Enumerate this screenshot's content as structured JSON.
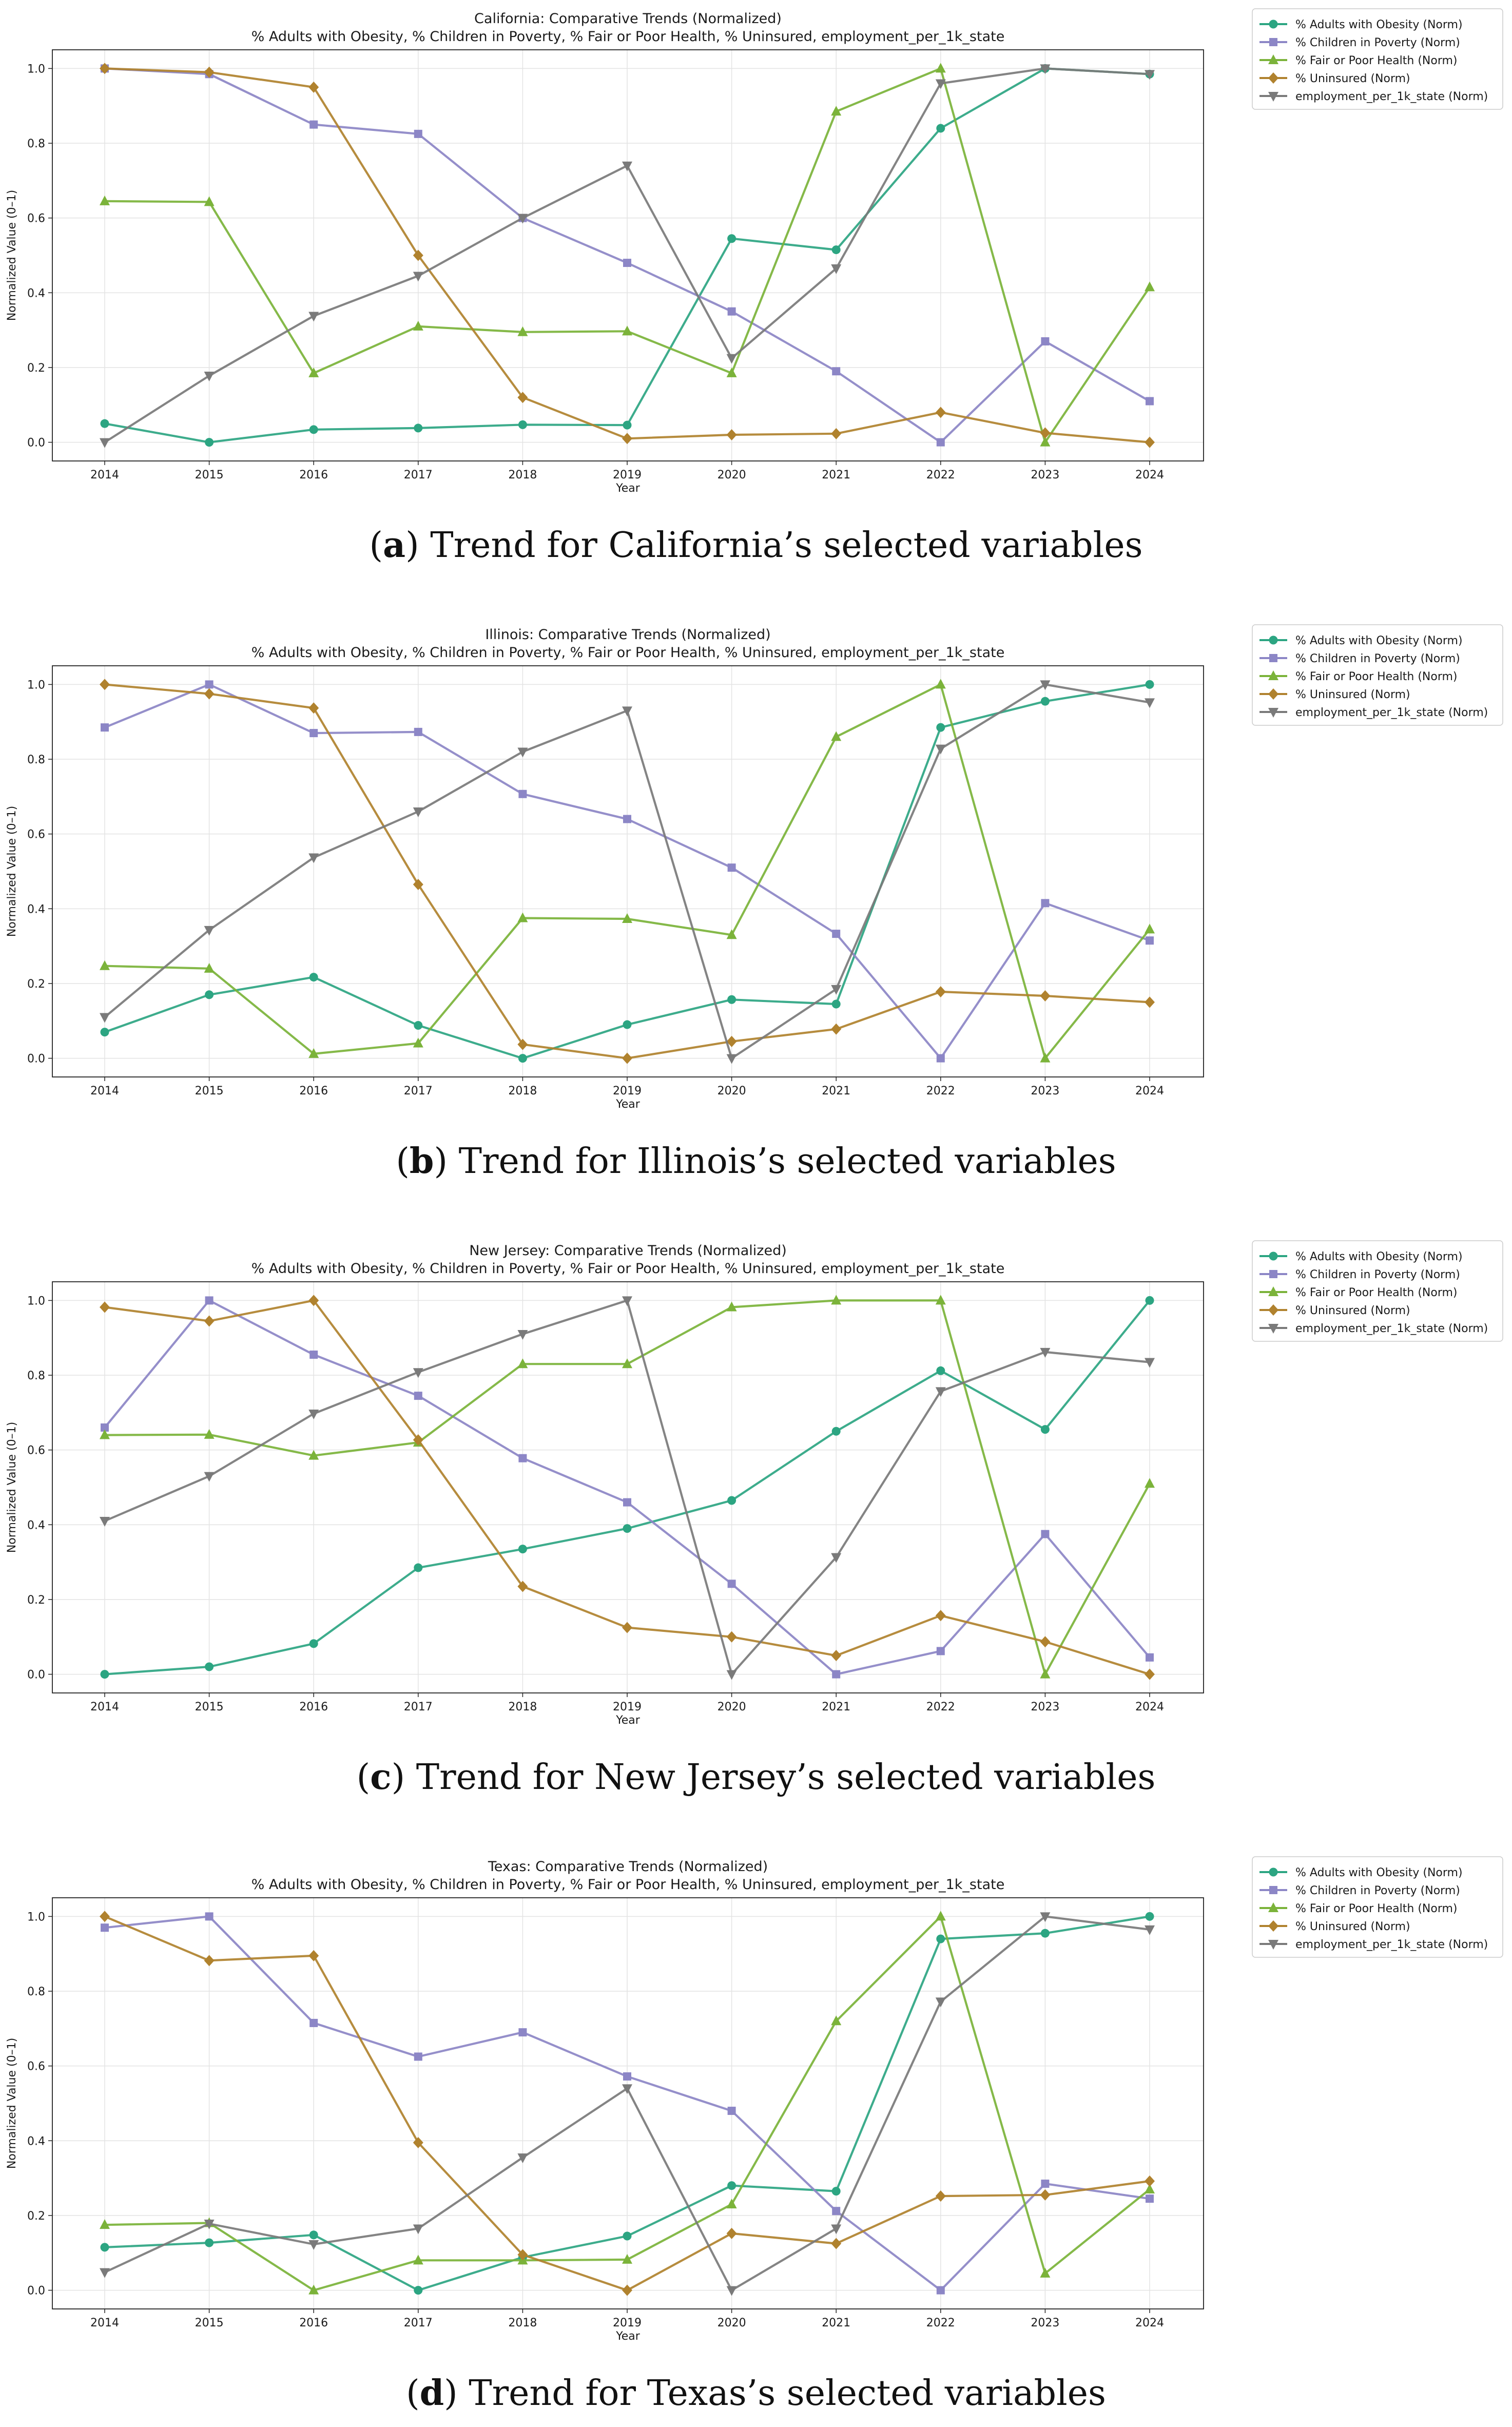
{
  "figure": {
    "common_subtitle": "% Adults with Obesity, % Children in Poverty, % Fair or Poor Health, % Uninsured, employment_per_1k_state",
    "ylabel": "Normalized Value (0–1)",
    "xlabel": "Year",
    "years": [
      "2014",
      "2015",
      "2016",
      "2017",
      "2018",
      "2019",
      "2020",
      "2021",
      "2022",
      "2023",
      "2024"
    ],
    "yticks": [
      "0.0",
      "0.2",
      "0.4",
      "0.6",
      "0.8",
      "1.0"
    ],
    "series_names": [
      "% Adults with Obesity (Norm)",
      "% Children in Poverty (Norm)",
      "% Fair or Poor Health (Norm)",
      "% Uninsured (Norm)",
      "employment_per_1k_state (Norm)"
    ],
    "series_colors": [
      "#2ca582",
      "#8c86c6",
      "#7bb33a",
      "#b0822e",
      "#7a7a7a"
    ],
    "series_markers": [
      "circle",
      "square",
      "triangle-up",
      "diamond",
      "triangle-down"
    ]
  },
  "chart_data": [
    {
      "type": "line",
      "title": "California: Comparative Trends (Normalized)",
      "subtitle": "% Adults with Obesity, % Children in Poverty, % Fair or Poor Health, % Uninsured, employment_per_1k_state",
      "xlabel": "Year",
      "ylabel": "Normalized Value (0–1)",
      "ylim": [
        -0.05,
        1.05
      ],
      "caption_letter": "a",
      "caption_text": "Trend for California’s selected variables",
      "x": [
        2014,
        2015,
        2016,
        2017,
        2018,
        2019,
        2020,
        2021,
        2022,
        2023,
        2024
      ],
      "series": [
        {
          "name": "% Adults with Obesity (Norm)",
          "values": [
            0.05,
            0.0,
            0.034,
            0.038,
            0.047,
            0.046,
            0.545,
            0.515,
            0.84,
            1.0,
            0.985
          ]
        },
        {
          "name": "% Children in Poverty (Norm)",
          "values": [
            1.0,
            0.985,
            0.85,
            0.825,
            0.6,
            0.48,
            0.35,
            0.19,
            0.0,
            0.27,
            0.11
          ]
        },
        {
          "name": "% Fair or Poor Health (Norm)",
          "values": [
            0.645,
            0.643,
            0.185,
            0.31,
            0.295,
            0.297,
            0.185,
            0.885,
            1.0,
            0.0,
            0.415
          ]
        },
        {
          "name": "% Uninsured (Norm)",
          "values": [
            1.0,
            0.99,
            0.95,
            0.5,
            0.12,
            0.01,
            0.02,
            0.023,
            0.08,
            0.025,
            0.0
          ]
        },
        {
          "name": "employment_per_1k_state (Norm)",
          "values": [
            0.0,
            0.178,
            0.338,
            0.445,
            0.6,
            0.74,
            0.225,
            0.465,
            0.96,
            1.0,
            0.985
          ]
        }
      ]
    },
    {
      "type": "line",
      "title": "Illinois: Comparative Trends (Normalized)",
      "subtitle": "% Adults with Obesity, % Children in Poverty, % Fair or Poor Health, % Uninsured, employment_per_1k_state",
      "xlabel": "Year",
      "ylabel": "Normalized Value (0–1)",
      "ylim": [
        -0.05,
        1.05
      ],
      "caption_letter": "b",
      "caption_text": "Trend for Illinois’s selected variables",
      "x": [
        2014,
        2015,
        2016,
        2017,
        2018,
        2019,
        2020,
        2021,
        2022,
        2023,
        2024
      ],
      "series": [
        {
          "name": "% Adults with Obesity (Norm)",
          "values": [
            0.07,
            0.17,
            0.217,
            0.088,
            0.0,
            0.09,
            0.157,
            0.145,
            0.885,
            0.955,
            1.0
          ]
        },
        {
          "name": "% Children in Poverty (Norm)",
          "values": [
            0.885,
            1.0,
            0.87,
            0.873,
            0.707,
            0.64,
            0.51,
            0.333,
            0.0,
            0.415,
            0.315
          ]
        },
        {
          "name": "% Fair or Poor Health (Norm)",
          "values": [
            0.247,
            0.24,
            0.012,
            0.04,
            0.375,
            0.373,
            0.33,
            0.86,
            1.0,
            0.0,
            0.345
          ]
        },
        {
          "name": "% Uninsured (Norm)",
          "values": [
            1.0,
            0.975,
            0.937,
            0.465,
            0.037,
            0.0,
            0.045,
            0.078,
            0.178,
            0.167,
            0.15
          ]
        },
        {
          "name": "employment_per_1k_state (Norm)",
          "values": [
            0.11,
            0.343,
            0.537,
            0.66,
            0.82,
            0.93,
            0.0,
            0.185,
            0.828,
            1.0,
            0.952
          ]
        }
      ]
    },
    {
      "type": "line",
      "title": "New Jersey: Comparative Trends (Normalized)",
      "subtitle": "% Adults with Obesity, % Children in Poverty, % Fair or Poor Health, % Uninsured, employment_per_1k_state",
      "xlabel": "Year",
      "ylabel": "Normalized Value (0–1)",
      "ylim": [
        -0.05,
        1.05
      ],
      "caption_letter": "c",
      "caption_text": "Trend for New Jersey’s selected variables",
      "x": [
        2014,
        2015,
        2016,
        2017,
        2018,
        2019,
        2020,
        2021,
        2022,
        2023,
        2024
      ],
      "series": [
        {
          "name": "% Adults with Obesity (Norm)",
          "values": [
            0.0,
            0.02,
            0.082,
            0.285,
            0.335,
            0.39,
            0.465,
            0.65,
            0.812,
            0.655,
            1.0
          ]
        },
        {
          "name": "% Children in Poverty (Norm)",
          "values": [
            0.66,
            1.0,
            0.855,
            0.745,
            0.578,
            0.46,
            0.242,
            0.0,
            0.062,
            0.375,
            0.045
          ]
        },
        {
          "name": "% Fair or Poor Health (Norm)",
          "values": [
            0.64,
            0.641,
            0.585,
            0.62,
            0.83,
            0.83,
            0.982,
            1.0,
            1.0,
            0.0,
            0.51
          ]
        },
        {
          "name": "% Uninsured (Norm)",
          "values": [
            0.982,
            0.945,
            1.0,
            0.627,
            0.235,
            0.125,
            0.1,
            0.05,
            0.157,
            0.087,
            0.0
          ]
        },
        {
          "name": "employment_per_1k_state (Norm)",
          "values": [
            0.41,
            0.53,
            0.697,
            0.808,
            0.91,
            1.0,
            0.0,
            0.313,
            0.757,
            0.862,
            0.835
          ]
        }
      ]
    },
    {
      "type": "line",
      "title": "Texas: Comparative Trends (Normalized)",
      "subtitle": "% Adults with Obesity, % Children in Poverty, % Fair or Poor Health, % Uninsured, employment_per_1k_state",
      "xlabel": "Year",
      "ylabel": "Normalized Value (0–1)",
      "ylim": [
        -0.05,
        1.05
      ],
      "caption_letter": "d",
      "caption_text": "Trend for Texas’s selected variables",
      "x": [
        2014,
        2015,
        2016,
        2017,
        2018,
        2019,
        2020,
        2021,
        2022,
        2023,
        2024
      ],
      "series": [
        {
          "name": "% Adults with Obesity (Norm)",
          "values": [
            0.115,
            0.127,
            0.148,
            0.0,
            0.088,
            0.145,
            0.28,
            0.265,
            0.94,
            0.955,
            1.0
          ]
        },
        {
          "name": "% Children in Poverty (Norm)",
          "values": [
            0.97,
            1.0,
            0.715,
            0.625,
            0.69,
            0.572,
            0.48,
            0.212,
            0.0,
            0.285,
            0.245
          ]
        },
        {
          "name": "% Fair or Poor Health (Norm)",
          "values": [
            0.175,
            0.18,
            0.0,
            0.08,
            0.08,
            0.082,
            0.23,
            0.72,
            1.0,
            0.045,
            0.27
          ]
        },
        {
          "name": "% Uninsured (Norm)",
          "values": [
            1.0,
            0.882,
            0.895,
            0.395,
            0.095,
            0.0,
            0.152,
            0.125,
            0.252,
            0.255,
            0.292
          ]
        },
        {
          "name": "employment_per_1k_state (Norm)",
          "values": [
            0.048,
            0.178,
            0.123,
            0.165,
            0.355,
            0.54,
            0.0,
            0.165,
            0.772,
            1.0,
            0.965
          ]
        }
      ]
    }
  ]
}
